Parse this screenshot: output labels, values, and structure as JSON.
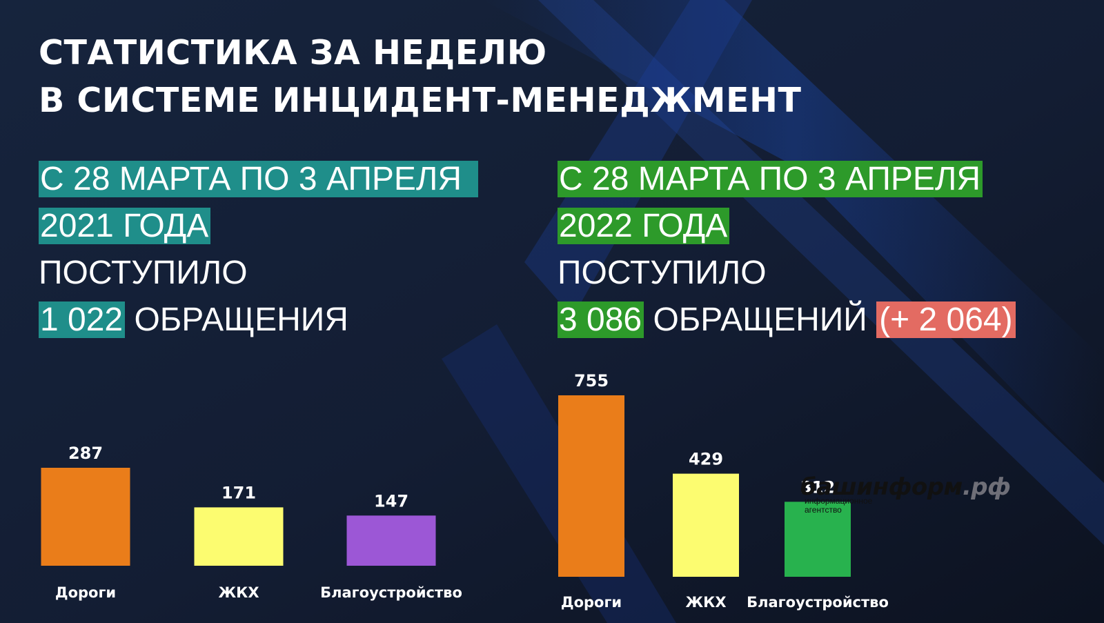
{
  "title": {
    "line1": "СТАТИСТИКА ЗА НЕДЕЛЮ",
    "line2": "В СИСТЕМЕ ИНЦИДЕНТ-МЕНЕДЖМЕНТ"
  },
  "left": {
    "period_line1": "С 28 МАРТА ПО 3 АПРЕЛЯ",
    "period_line2": "2021 ГОДА",
    "received_label": "ПОСТУПИЛО",
    "count": "1 022",
    "count_unit": "ОБРАЩЕНИЯ",
    "highlight_color": "#1f8e8a"
  },
  "right": {
    "period_line1": "С 28 МАРТА ПО 3 АПРЕЛЯ",
    "period_line2": "2022 ГОДА",
    "received_label": "ПОСТУПИЛО",
    "count": "3 086",
    "count_unit": "ОБРАЩЕНИЙ",
    "delta": "(+ 2 064)",
    "highlight_color": "#2d9a2a",
    "delta_color": "#e36b62"
  },
  "watermark": {
    "brand": "башинформ",
    "domain": ".рф",
    "subtitle_line1": "информационное",
    "subtitle_line2": "агентство"
  },
  "chart_data": [
    {
      "type": "bar",
      "categories": [
        "Дороги",
        "ЖКХ",
        "Благоустройство"
      ],
      "values": [
        287,
        171,
        147
      ],
      "colors": [
        "#ea7d1a",
        "#fcfc70",
        "#9c57d6"
      ],
      "ylim": [
        0,
        800
      ]
    },
    {
      "type": "bar",
      "categories": [
        "Дороги",
        "ЖКХ",
        "Благоустройство"
      ],
      "values": [
        755,
        429,
        312
      ],
      "colors": [
        "#ea7d1a",
        "#fcfc70",
        "#28b24e"
      ],
      "ylim": [
        0,
        800
      ]
    }
  ]
}
